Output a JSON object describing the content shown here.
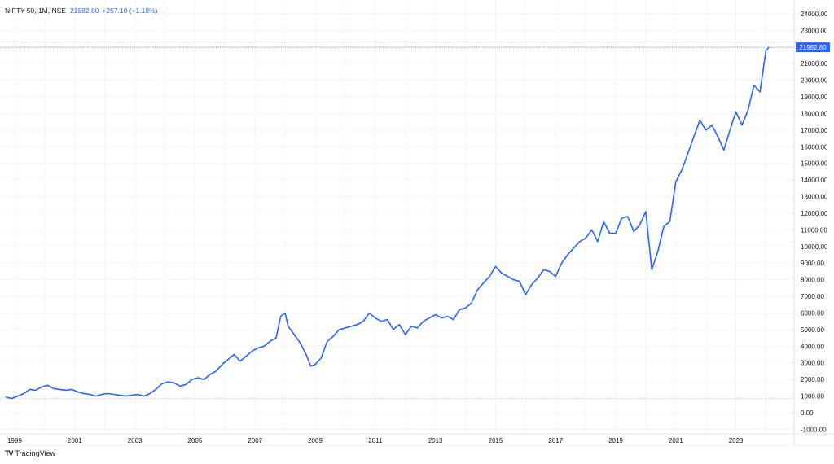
{
  "legend": {
    "symbol": "NIFTY 50, 1M, NSE",
    "last": "21982.80",
    "change": "+257.10 (+1.18%)"
  },
  "price_label": "21982.80",
  "branding": {
    "logo": "TV",
    "name": "TradingView"
  },
  "colors": {
    "line": "#2962ff",
    "grid": "#f0f3fa",
    "axis_text": "#131722",
    "price_tag_bg": "#2962ff",
    "price_tag_text": "#ffffff"
  },
  "chart_data": {
    "type": "line",
    "title": "NIFTY 50, 1M, NSE",
    "xlabel": "",
    "ylabel": "",
    "ylim": [
      -1000,
      24000
    ],
    "y_ticks": [
      "24000.00",
      "23000.00",
      "22000.00",
      "21000.00",
      "20000.00",
      "19000.00",
      "18000.00",
      "17000.00",
      "16000.00",
      "15000.00",
      "14000.00",
      "13000.00",
      "12000.00",
      "11000.00",
      "10000.00",
      "9000.00",
      "8000.00",
      "7000.00",
      "6000.00",
      "5000.00",
      "4000.00",
      "3000.00",
      "2000.00",
      "1000.00",
      "0.00",
      "-1000.00"
    ],
    "y_tick_labels_visible": [
      "24000.00",
      "23000.00",
      "21000.00",
      "20000.00",
      "19000.00",
      "18000.00",
      "17000.00",
      "16000.00",
      "15000.00",
      "14000.00",
      "13000.00",
      "12000.00",
      "11000.00",
      "10000.00",
      "9000.00",
      "8000.00",
      "7000.00",
      "6000.00",
      "5000.00",
      "4000.00",
      "3000.00",
      "2000.00",
      "1000.00",
      "0.00",
      "-1000.00"
    ],
    "x_ticks": [
      "1999",
      "2001",
      "2003",
      "2005",
      "2007",
      "2009",
      "2011",
      "2013",
      "2015",
      "2017",
      "2019",
      "2021",
      "2023"
    ],
    "grid": true,
    "legend_position": "top-left",
    "last_value": 21982.8,
    "reference_lines": [
      {
        "value": 22300,
        "style": "dotted",
        "color": "#b2b5be"
      },
      {
        "value": 21982.8,
        "style": "dotted",
        "color": "#2962ff"
      },
      {
        "value": 850,
        "style": "dotted",
        "color": "#b2b5be"
      }
    ],
    "series": [
      {
        "name": "NIFTY 50",
        "x": [
          1998.7,
          1998.9,
          1999.1,
          1999.3,
          1999.5,
          1999.7,
          1999.9,
          2000.1,
          2000.3,
          2000.5,
          2000.7,
          2000.9,
          2001.1,
          2001.3,
          2001.5,
          2001.7,
          2001.9,
          2002.1,
          2002.3,
          2002.5,
          2002.7,
          2002.9,
          2003.1,
          2003.3,
          2003.5,
          2003.7,
          2003.9,
          2004.1,
          2004.3,
          2004.5,
          2004.7,
          2004.9,
          2005.1,
          2005.3,
          2005.5,
          2005.7,
          2005.9,
          2006.1,
          2006.3,
          2006.5,
          2006.7,
          2006.9,
          2007.1,
          2007.3,
          2007.5,
          2007.7,
          2007.85,
          2008.0,
          2008.1,
          2008.3,
          2008.5,
          2008.7,
          2008.85,
          2009.0,
          2009.2,
          2009.4,
          2009.6,
          2009.8,
          2010.0,
          2010.2,
          2010.4,
          2010.6,
          2010.8,
          2011.0,
          2011.2,
          2011.4,
          2011.6,
          2011.8,
          2012.0,
          2012.2,
          2012.4,
          2012.6,
          2012.8,
          2013.0,
          2013.2,
          2013.4,
          2013.6,
          2013.8,
          2014.0,
          2014.2,
          2014.4,
          2014.6,
          2014.8,
          2015.0,
          2015.2,
          2015.4,
          2015.6,
          2015.8,
          2016.0,
          2016.2,
          2016.4,
          2016.6,
          2016.8,
          2017.0,
          2017.2,
          2017.4,
          2017.6,
          2017.8,
          2018.0,
          2018.2,
          2018.4,
          2018.6,
          2018.8,
          2019.0,
          2019.2,
          2019.4,
          2019.6,
          2019.8,
          2020.0,
          2020.2,
          2020.4,
          2020.6,
          2020.8,
          2021.0,
          2021.2,
          2021.4,
          2021.6,
          2021.8,
          2022.0,
          2022.2,
          2022.4,
          2022.6,
          2022.8,
          2023.0,
          2023.2,
          2023.4,
          2023.6,
          2023.8,
          2024.0,
          2024.1
        ],
        "values": [
          950,
          850,
          1000,
          1150,
          1400,
          1350,
          1550,
          1650,
          1450,
          1400,
          1350,
          1400,
          1250,
          1150,
          1100,
          1000,
          1100,
          1150,
          1100,
          1050,
          1000,
          1050,
          1100,
          1000,
          1150,
          1400,
          1750,
          1850,
          1800,
          1600,
          1700,
          2000,
          2100,
          2000,
          2300,
          2500,
          2900,
          3200,
          3500,
          3100,
          3400,
          3700,
          3900,
          4000,
          4300,
          4500,
          5800,
          6000,
          5200,
          4700,
          4200,
          3500,
          2800,
          2900,
          3300,
          4300,
          4600,
          5000,
          5100,
          5200,
          5300,
          5500,
          6000,
          5700,
          5500,
          5600,
          5000,
          5300,
          4700,
          5200,
          5100,
          5500,
          5700,
          5900,
          5700,
          5800,
          5600,
          6200,
          6300,
          6600,
          7400,
          7800,
          8200,
          8800,
          8400,
          8200,
          8000,
          7900,
          7100,
          7700,
          8100,
          8600,
          8500,
          8200,
          9000,
          9500,
          9900,
          10300,
          10500,
          11000,
          10300,
          11500,
          10800,
          10800,
          11700,
          11800,
          10900,
          11300,
          12100,
          8600,
          9700,
          11200,
          11500,
          13900,
          14600,
          15600,
          16600,
          17600,
          17000,
          17300,
          16600,
          15800,
          17000,
          18100,
          17300,
          18200,
          19700,
          19300,
          21800,
          21982.8
        ]
      }
    ]
  }
}
